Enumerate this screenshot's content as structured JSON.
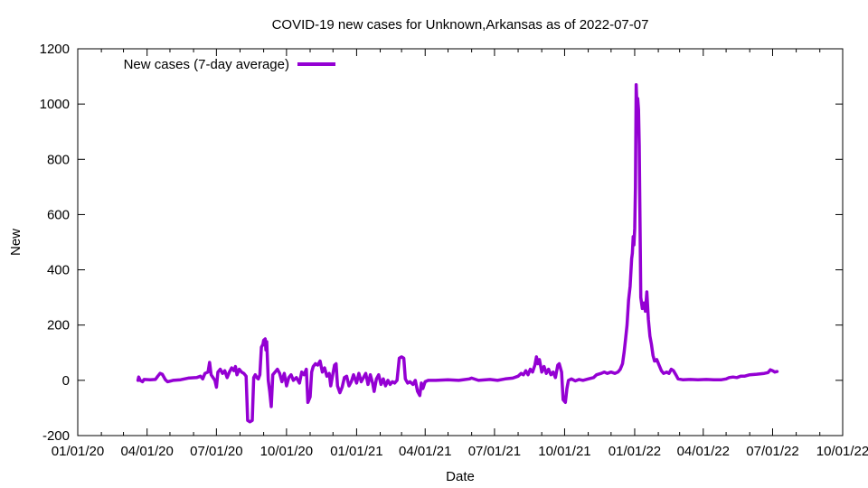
{
  "chart_data": {
    "type": "line",
    "title": "COVID-19 new cases for Unknown,Arkansas as of 2022-07-07",
    "xlabel": "Date",
    "ylabel": "New",
    "xlim": [
      "2020-01-01",
      "2022-10-01"
    ],
    "ylim": [
      -200,
      1200
    ],
    "x_ticks": [
      "01/01/20",
      "04/01/20",
      "07/01/20",
      "10/01/20",
      "01/01/21",
      "04/01/21",
      "07/01/21",
      "10/01/21",
      "01/01/22",
      "04/01/22",
      "07/01/22",
      "10/01/22"
    ],
    "x_tick_dates": [
      "2020-01-01",
      "2020-04-01",
      "2020-07-01",
      "2020-10-01",
      "2021-01-01",
      "2021-04-01",
      "2021-07-01",
      "2021-10-01",
      "2022-01-01",
      "2022-04-01",
      "2022-07-01",
      "2022-10-01"
    ],
    "y_ticks": [
      -200,
      0,
      200,
      400,
      600,
      800,
      1000,
      1200
    ],
    "grid": false,
    "legend_position": "top-left",
    "series": [
      {
        "name": "New cases (7-day average)",
        "color": "#9400d3",
        "points": [
          [
            "2020-03-20",
            0
          ],
          [
            "2020-03-21",
            12
          ],
          [
            "2020-03-23",
            0
          ],
          [
            "2020-03-26",
            -5
          ],
          [
            "2020-03-28",
            3
          ],
          [
            "2020-04-05",
            2
          ],
          [
            "2020-04-12",
            3
          ],
          [
            "2020-04-15",
            15
          ],
          [
            "2020-04-18",
            25
          ],
          [
            "2020-04-21",
            22
          ],
          [
            "2020-04-25",
            2
          ],
          [
            "2020-04-28",
            -5
          ],
          [
            "2020-05-05",
            0
          ],
          [
            "2020-05-15",
            2
          ],
          [
            "2020-05-25",
            8
          ],
          [
            "2020-06-05",
            10
          ],
          [
            "2020-06-10",
            15
          ],
          [
            "2020-06-13",
            5
          ],
          [
            "2020-06-16",
            25
          ],
          [
            "2020-06-20",
            30
          ],
          [
            "2020-06-22",
            65
          ],
          [
            "2020-06-24",
            20
          ],
          [
            "2020-06-27",
            8
          ],
          [
            "2020-06-29",
            0
          ],
          [
            "2020-07-01",
            -25
          ],
          [
            "2020-07-03",
            30
          ],
          [
            "2020-07-06",
            40
          ],
          [
            "2020-07-09",
            25
          ],
          [
            "2020-07-12",
            35
          ],
          [
            "2020-07-15",
            10
          ],
          [
            "2020-07-18",
            30
          ],
          [
            "2020-07-21",
            45
          ],
          [
            "2020-07-24",
            35
          ],
          [
            "2020-07-26",
            50
          ],
          [
            "2020-07-28",
            20
          ],
          [
            "2020-07-31",
            40
          ],
          [
            "2020-08-03",
            30
          ],
          [
            "2020-08-06",
            25
          ],
          [
            "2020-08-09",
            15
          ],
          [
            "2020-08-11",
            -145
          ],
          [
            "2020-08-14",
            -150
          ],
          [
            "2020-08-17",
            -145
          ],
          [
            "2020-08-19",
            10
          ],
          [
            "2020-08-21",
            20
          ],
          [
            "2020-08-23",
            10
          ],
          [
            "2020-08-25",
            5
          ],
          [
            "2020-08-27",
            20
          ],
          [
            "2020-08-29",
            120
          ],
          [
            "2020-08-31",
            130
          ],
          [
            "2020-09-01",
            145
          ],
          [
            "2020-09-03",
            150
          ],
          [
            "2020-09-04",
            110
          ],
          [
            "2020-09-05",
            140
          ],
          [
            "2020-09-07",
            0
          ],
          [
            "2020-09-09",
            -40
          ],
          [
            "2020-09-11",
            -95
          ],
          [
            "2020-09-13",
            20
          ],
          [
            "2020-09-16",
            30
          ],
          [
            "2020-09-19",
            40
          ],
          [
            "2020-09-22",
            25
          ],
          [
            "2020-09-25",
            -5
          ],
          [
            "2020-09-28",
            25
          ],
          [
            "2020-10-01",
            -20
          ],
          [
            "2020-10-04",
            10
          ],
          [
            "2020-10-07",
            20
          ],
          [
            "2020-10-10",
            0
          ],
          [
            "2020-10-14",
            10
          ],
          [
            "2020-10-18",
            -10
          ],
          [
            "2020-10-21",
            30
          ],
          [
            "2020-10-24",
            20
          ],
          [
            "2020-10-27",
            40
          ],
          [
            "2020-10-29",
            -80
          ],
          [
            "2020-11-01",
            -60
          ],
          [
            "2020-11-03",
            30
          ],
          [
            "2020-11-05",
            50
          ],
          [
            "2020-11-08",
            60
          ],
          [
            "2020-11-11",
            55
          ],
          [
            "2020-11-14",
            70
          ],
          [
            "2020-11-17",
            30
          ],
          [
            "2020-11-20",
            45
          ],
          [
            "2020-11-23",
            15
          ],
          [
            "2020-11-26",
            25
          ],
          [
            "2020-11-28",
            -20
          ],
          [
            "2020-11-30",
            10
          ],
          [
            "2020-12-03",
            55
          ],
          [
            "2020-12-05",
            60
          ],
          [
            "2020-12-07",
            -20
          ],
          [
            "2020-12-10",
            -45
          ],
          [
            "2020-12-13",
            -25
          ],
          [
            "2020-12-16",
            10
          ],
          [
            "2020-12-19",
            15
          ],
          [
            "2020-12-22",
            -20
          ],
          [
            "2020-12-25",
            -5
          ],
          [
            "2020-12-28",
            20
          ],
          [
            "2021-01-01",
            -10
          ],
          [
            "2021-01-04",
            25
          ],
          [
            "2021-01-07",
            -5
          ],
          [
            "2021-01-10",
            10
          ],
          [
            "2021-01-13",
            25
          ],
          [
            "2021-01-16",
            -15
          ],
          [
            "2021-01-19",
            20
          ],
          [
            "2021-01-22",
            -10
          ],
          [
            "2021-01-24",
            -40
          ],
          [
            "2021-01-27",
            5
          ],
          [
            "2021-01-30",
            20
          ],
          [
            "2021-02-02",
            -15
          ],
          [
            "2021-02-05",
            5
          ],
          [
            "2021-02-08",
            -20
          ],
          [
            "2021-02-11",
            0
          ],
          [
            "2021-02-14",
            -15
          ],
          [
            "2021-02-17",
            -5
          ],
          [
            "2021-02-20",
            -10
          ],
          [
            "2021-02-23",
            0
          ],
          [
            "2021-02-26",
            80
          ],
          [
            "2021-03-01",
            85
          ],
          [
            "2021-03-04",
            80
          ],
          [
            "2021-03-06",
            5
          ],
          [
            "2021-03-09",
            -10
          ],
          [
            "2021-03-12",
            -5
          ],
          [
            "2021-03-16",
            -15
          ],
          [
            "2021-03-19",
            0
          ],
          [
            "2021-03-22",
            -40
          ],
          [
            "2021-03-25",
            -55
          ],
          [
            "2021-03-27",
            -10
          ],
          [
            "2021-03-29",
            -30
          ],
          [
            "2021-04-01",
            -5
          ],
          [
            "2021-04-05",
            0
          ],
          [
            "2021-04-15",
            0
          ],
          [
            "2021-05-01",
            2
          ],
          [
            "2021-05-15",
            0
          ],
          [
            "2021-05-29",
            5
          ],
          [
            "2021-06-01",
            8
          ],
          [
            "2021-06-10",
            0
          ],
          [
            "2021-06-25",
            3
          ],
          [
            "2021-07-05",
            0
          ],
          [
            "2021-07-15",
            5
          ],
          [
            "2021-07-25",
            8
          ],
          [
            "2021-08-01",
            15
          ],
          [
            "2021-08-05",
            25
          ],
          [
            "2021-08-08",
            20
          ],
          [
            "2021-08-11",
            35
          ],
          [
            "2021-08-14",
            20
          ],
          [
            "2021-08-17",
            40
          ],
          [
            "2021-08-20",
            30
          ],
          [
            "2021-08-23",
            55
          ],
          [
            "2021-08-25",
            85
          ],
          [
            "2021-08-27",
            60
          ],
          [
            "2021-08-29",
            75
          ],
          [
            "2021-09-01",
            30
          ],
          [
            "2021-09-04",
            50
          ],
          [
            "2021-09-07",
            25
          ],
          [
            "2021-09-10",
            40
          ],
          [
            "2021-09-13",
            20
          ],
          [
            "2021-09-16",
            30
          ],
          [
            "2021-09-19",
            10
          ],
          [
            "2021-09-22",
            55
          ],
          [
            "2021-09-24",
            60
          ],
          [
            "2021-09-27",
            30
          ],
          [
            "2021-09-29",
            -70
          ],
          [
            "2021-10-02",
            -80
          ],
          [
            "2021-10-04",
            -30
          ],
          [
            "2021-10-06",
            0
          ],
          [
            "2021-10-10",
            5
          ],
          [
            "2021-10-15",
            -2
          ],
          [
            "2021-10-20",
            3
          ],
          [
            "2021-10-25",
            0
          ],
          [
            "2021-11-01",
            5
          ],
          [
            "2021-11-08",
            10
          ],
          [
            "2021-11-12",
            20
          ],
          [
            "2021-11-18",
            25
          ],
          [
            "2021-11-22",
            30
          ],
          [
            "2021-11-26",
            25
          ],
          [
            "2021-12-01",
            30
          ],
          [
            "2021-12-06",
            25
          ],
          [
            "2021-12-10",
            30
          ],
          [
            "2021-12-13",
            40
          ],
          [
            "2021-12-16",
            60
          ],
          [
            "2021-12-18",
            100
          ],
          [
            "2021-12-20",
            150
          ],
          [
            "2021-12-22",
            200
          ],
          [
            "2021-12-24",
            290
          ],
          [
            "2021-12-26",
            340
          ],
          [
            "2021-12-28",
            440
          ],
          [
            "2021-12-29",
            460
          ],
          [
            "2021-12-30",
            520
          ],
          [
            "2021-12-31",
            490
          ],
          [
            "2022-01-01",
            550
          ],
          [
            "2022-01-02",
            700
          ],
          [
            "2022-01-03",
            1070
          ],
          [
            "2022-01-04",
            990
          ],
          [
            "2022-01-05",
            1020
          ],
          [
            "2022-01-06",
            980
          ],
          [
            "2022-01-07",
            850
          ],
          [
            "2022-01-09",
            300
          ],
          [
            "2022-01-11",
            260
          ],
          [
            "2022-01-13",
            280
          ],
          [
            "2022-01-15",
            250
          ],
          [
            "2022-01-17",
            320
          ],
          [
            "2022-01-19",
            220
          ],
          [
            "2022-01-21",
            160
          ],
          [
            "2022-01-23",
            130
          ],
          [
            "2022-01-25",
            90
          ],
          [
            "2022-01-27",
            70
          ],
          [
            "2022-01-30",
            75
          ],
          [
            "2022-02-02",
            55
          ],
          [
            "2022-02-05",
            35
          ],
          [
            "2022-02-08",
            25
          ],
          [
            "2022-02-12",
            30
          ],
          [
            "2022-02-15",
            25
          ],
          [
            "2022-02-18",
            40
          ],
          [
            "2022-02-21",
            35
          ],
          [
            "2022-02-24",
            20
          ],
          [
            "2022-02-27",
            5
          ],
          [
            "2022-03-05",
            2
          ],
          [
            "2022-03-15",
            3
          ],
          [
            "2022-03-25",
            2
          ],
          [
            "2022-04-05",
            3
          ],
          [
            "2022-04-15",
            2
          ],
          [
            "2022-04-25",
            2
          ],
          [
            "2022-05-01",
            5
          ],
          [
            "2022-05-05",
            10
          ],
          [
            "2022-05-10",
            12
          ],
          [
            "2022-05-15",
            10
          ],
          [
            "2022-05-20",
            15
          ],
          [
            "2022-05-25",
            15
          ],
          [
            "2022-06-01",
            20
          ],
          [
            "2022-06-10",
            22
          ],
          [
            "2022-06-20",
            25
          ],
          [
            "2022-06-25",
            28
          ],
          [
            "2022-06-28",
            38
          ],
          [
            "2022-07-01",
            35
          ],
          [
            "2022-07-04",
            30
          ],
          [
            "2022-07-07",
            32
          ]
        ]
      }
    ]
  }
}
